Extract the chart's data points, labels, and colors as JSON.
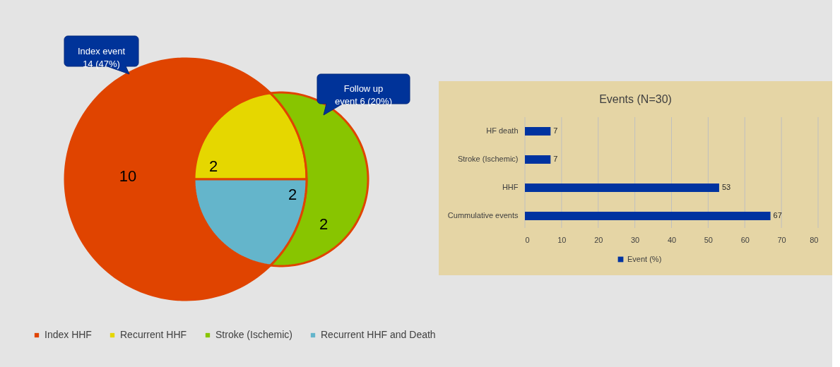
{
  "chart_data": [
    {
      "type": "other",
      "categories": [
        "Index HHF",
        "Recurrent HHF",
        "Stroke (Ischemic)",
        "Recurrent HHF and Death"
      ],
      "values": [
        10,
        2,
        2,
        2
      ],
      "colors": [
        "#e04400",
        "#e5d700",
        "#88c500",
        "#64b5cb"
      ],
      "data_labels": true,
      "annotations": [
        "Index event\n14 (47%)",
        "Follow up\nevent 6 (20%)"
      ]
    },
    {
      "type": "bar",
      "orientation": "horizontal",
      "title": "Events (N=30)",
      "categories": [
        "HF death",
        "Stroke (Ischemic)",
        "HHF",
        "Cummulative events"
      ],
      "series": [
        {
          "name": "Event (%)",
          "color": "#0033a0",
          "values": [
            7,
            7,
            53,
            67
          ]
        }
      ],
      "xlim": [
        0,
        80
      ],
      "xticks": [
        0,
        10,
        20,
        30,
        40,
        50,
        60,
        70,
        80
      ],
      "grid": "x",
      "legend": "bottom",
      "data_labels": true
    }
  ]
}
